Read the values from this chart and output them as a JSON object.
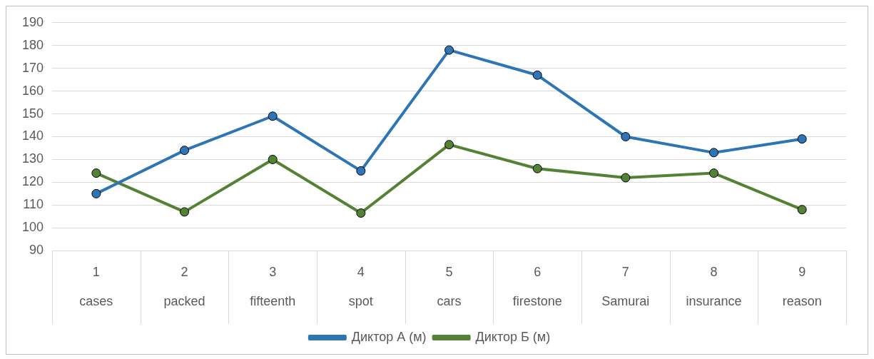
{
  "chart_data": {
    "type": "line",
    "categories": [
      "1\ncases",
      "2\npacked",
      "3\nfifteenth",
      "4\nspot",
      "5\ncars",
      "6\nfirestone",
      "7\nSamurai",
      "8\ninsurance",
      "9\nreason"
    ],
    "series": [
      {
        "name": "Диктор А (м)",
        "color": "#2e75b6",
        "values": [
          115,
          134,
          149,
          125,
          178,
          167,
          140,
          133,
          139
        ]
      },
      {
        "name": "Диктор Б (м)",
        "color": "#548235",
        "values": [
          124,
          107,
          130,
          106.5,
          136.5,
          126,
          122,
          124,
          108
        ]
      }
    ],
    "ylim": [
      90,
      190
    ],
    "yticks": [
      90,
      100,
      110,
      120,
      130,
      140,
      150,
      160,
      170,
      180,
      190
    ],
    "grid": "y",
    "legend": "bottom",
    "marker": "circle",
    "line_style": "solid"
  }
}
